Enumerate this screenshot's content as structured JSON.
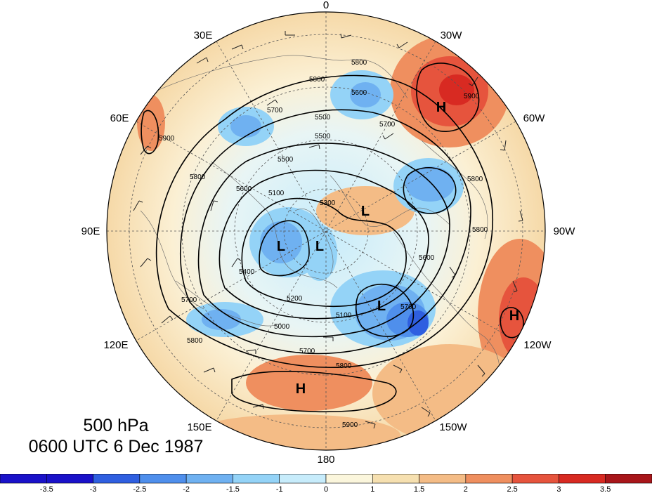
{
  "figure": {
    "level": "500 hPa",
    "time": "0600 UTC 6 Dec 1987"
  },
  "longitude_labels": [
    "0",
    "30W",
    "60W",
    "90W",
    "120W",
    "150W",
    "180",
    "150E",
    "120E",
    "90E",
    "60E",
    "30E"
  ],
  "pressure_centers": [
    {
      "type": "H",
      "label": "H"
    },
    {
      "type": "H",
      "label": "H"
    },
    {
      "type": "H",
      "label": "H"
    },
    {
      "type": "L",
      "label": "L"
    },
    {
      "type": "L",
      "label": "L"
    },
    {
      "type": "L",
      "label": "L"
    },
    {
      "type": "L",
      "label": "L"
    }
  ],
  "contour_labels": [
    "5900",
    "5800",
    "5700",
    "5600",
    "5500",
    "5400",
    "5300",
    "5200",
    "5100",
    "5000"
  ],
  "colorbar": {
    "tick_labels": [
      "-3.5",
      "-3",
      "-2.5",
      "-2",
      "-1.5",
      "-1",
      "0",
      "1",
      "1.5",
      "2",
      "2.5",
      "3",
      "3.5"
    ],
    "colors": [
      "#1a12c9",
      "#2f5fe0",
      "#4f8fec",
      "#6fb1f1",
      "#94d3f7",
      "#c7ecfb",
      "#fbf6dc",
      "#f6e0b0",
      "#f4bc86",
      "#ef8f5f",
      "#e6543d",
      "#d82a22",
      "#a8161a"
    ]
  }
}
